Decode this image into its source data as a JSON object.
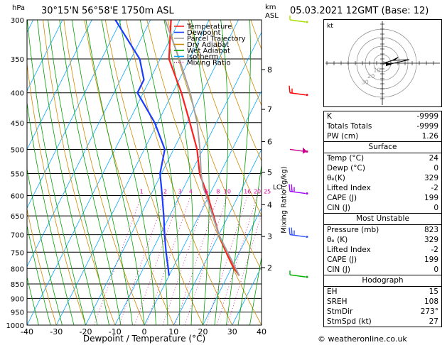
{
  "header": {
    "location": "30°15'N  56°58'E  1750m  ASL",
    "datetime": "05.03.2021  12GMT  (Base: 12)",
    "hpa_label": "hPa",
    "km_label": "km",
    "asl_label": "ASL",
    "lcl_label": "LCL",
    "mixing_ratio_axis_label": "Mixing Ratio (g/kg)",
    "copyright": "© weatheronline.co.uk"
  },
  "chart_data": {
    "type": "line",
    "xlabel": "Dewpoint / Temperature (°C)",
    "ylabel": "hPa",
    "xlim": [
      -40,
      40
    ],
    "ylim": [
      1000,
      300
    ],
    "pressure_ticks": [
      300,
      350,
      400,
      450,
      500,
      550,
      600,
      650,
      700,
      750,
      800,
      850,
      900,
      950,
      1000
    ],
    "temp_ticks": [
      -40,
      -30,
      -20,
      -10,
      0,
      10,
      20,
      30,
      40
    ],
    "altitude_ticks_km": [
      {
        "label": "8",
        "p": 365
      },
      {
        "label": "7",
        "p": 427
      },
      {
        "label": "6",
        "p": 485
      },
      {
        "label": "5",
        "p": 547
      },
      {
        "label": "4",
        "p": 622
      },
      {
        "label": "3",
        "p": 705
      },
      {
        "label": "2",
        "p": 797
      }
    ],
    "lcl_pressure": 580,
    "mixing_ratio_labels": [
      "1",
      "2",
      "3",
      "4",
      "6",
      "8",
      "10",
      "16",
      "20",
      "25"
    ],
    "legend": [
      "Temperature",
      "Dewpoint",
      "Parcel Trajectory",
      "Dry Adiabat",
      "Wet Adiabat",
      "Isotherm",
      "Mixing Ratio"
    ],
    "legend_colors": [
      "#ff2020",
      "#1a3cff",
      "#a0a0a0",
      "#d08a00",
      "#00a000",
      "#00a8ff",
      "#e0009c"
    ],
    "series": [
      {
        "name": "Temperature",
        "color": "#ff2020",
        "points": [
          [
            823,
            24
          ],
          [
            800,
            21
          ],
          [
            750,
            15.5
          ],
          [
            700,
            10
          ],
          [
            650,
            5
          ],
          [
            600,
            -0.5
          ],
          [
            550,
            -7
          ],
          [
            500,
            -12
          ],
          [
            450,
            -19
          ],
          [
            400,
            -27
          ],
          [
            350,
            -37
          ],
          [
            300,
            -43
          ]
        ]
      },
      {
        "name": "Dewpoint",
        "color": "#1a3cff",
        "points": [
          [
            823,
            0
          ],
          [
            800,
            -1.5
          ],
          [
            750,
            -5
          ],
          [
            700,
            -8.5
          ],
          [
            650,
            -12
          ],
          [
            600,
            -16
          ],
          [
            550,
            -20.5
          ],
          [
            500,
            -23
          ],
          [
            450,
            -31
          ],
          [
            400,
            -42
          ],
          [
            380,
            -42
          ],
          [
            350,
            -47
          ],
          [
            300,
            -62
          ]
        ]
      },
      {
        "name": "Parcel Trajectory",
        "color": "#a0a0a0",
        "points": [
          [
            823,
            24
          ],
          [
            700,
            10
          ],
          [
            600,
            -1
          ],
          [
            580,
            -3.5
          ],
          [
            550,
            -6.5
          ],
          [
            500,
            -11
          ],
          [
            450,
            -16.5
          ],
          [
            400,
            -24
          ],
          [
            350,
            -33.5
          ],
          [
            300,
            -45
          ]
        ]
      }
    ],
    "wind_barbs": [
      {
        "p": 300,
        "color": "#a8e000",
        "dir": 270,
        "kt": 5
      },
      {
        "p": 400,
        "color": "#ff0000",
        "dir": 270,
        "kt": 15
      },
      {
        "p": 500,
        "color": "#c8008c",
        "dir": 270,
        "kt": 0
      },
      {
        "p": 590,
        "color": "#a000ff",
        "dir": 270,
        "kt": 25
      },
      {
        "p": 700,
        "color": "#3050ff",
        "dir": 270,
        "kt": 25
      },
      {
        "p": 820,
        "color": "#00b000",
        "dir": 270,
        "kt": 5
      }
    ],
    "hodograph": {
      "label": "kt",
      "ring_labels": [
        "10",
        "20",
        "30"
      ],
      "storm_motion": {
        "dir": 273,
        "kt": 27
      }
    }
  },
  "indices": {
    "rows": [
      {
        "label": "K",
        "value": "-9999"
      },
      {
        "label": "Totals Totals",
        "value": "-9999"
      },
      {
        "label": "PW (cm)",
        "value": "1.26"
      }
    ]
  },
  "surface": {
    "title": "Surface",
    "rows": [
      {
        "label": "Temp (°C)",
        "value": "24"
      },
      {
        "label": "Dewp (°C)",
        "value": "0"
      },
      {
        "label": "θₑ(K)",
        "value": "329"
      },
      {
        "label": "Lifted Index",
        "value": "-2"
      },
      {
        "label": "CAPE (J)",
        "value": "199"
      },
      {
        "label": "CIN (J)",
        "value": "0"
      }
    ]
  },
  "most_unstable": {
    "title": "Most Unstable",
    "rows": [
      {
        "label": "Pressure (mb)",
        "value": "823"
      },
      {
        "label": "θₑ (K)",
        "value": "329"
      },
      {
        "label": "Lifted Index",
        "value": "-2"
      },
      {
        "label": "CAPE (J)",
        "value": "199"
      },
      {
        "label": "CIN (J)",
        "value": "0"
      }
    ]
  },
  "hodograph_table": {
    "title": "Hodograph",
    "rows": [
      {
        "label": "EH",
        "value": "15"
      },
      {
        "label": "SREH",
        "value": "108"
      },
      {
        "label": "StmDir",
        "value": "273°"
      },
      {
        "label": "StmSpd (kt)",
        "value": "27"
      }
    ]
  }
}
